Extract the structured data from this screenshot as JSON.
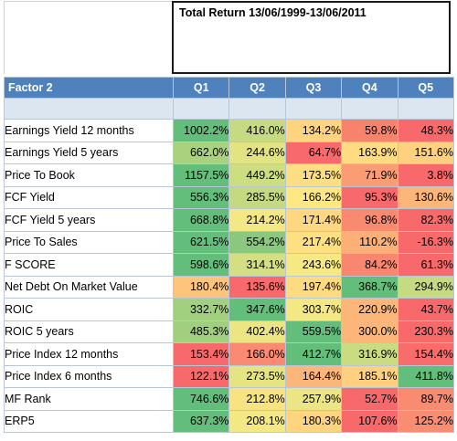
{
  "title": "Total Return 13/06/1999-13/06/2011",
  "header": {
    "factor_label": "Factor 2",
    "quintiles": [
      "Q1",
      "Q2",
      "Q3",
      "Q4",
      "Q5"
    ]
  },
  "rows": [
    {
      "name": "Earnings Yield 12 months",
      "values": [
        "1002.2%",
        "416.0%",
        "134.2%",
        "59.8%",
        "48.3%"
      ],
      "colors": [
        "#63be7b",
        "#c6db81",
        "#fed480",
        "#f8836c",
        "#f8696b"
      ]
    },
    {
      "name": "Earnings Yield 5 years",
      "values": [
        "662.0%",
        "244.6%",
        "64.7%",
        "163.9%",
        "151.6%"
      ],
      "colors": [
        "#a9d27f",
        "#e2e383",
        "#f8696b",
        "#ffdc82",
        "#fdd17f"
      ]
    },
    {
      "name": "Price To Book",
      "values": [
        "1157.5%",
        "449.2%",
        "173.5%",
        "71.9%",
        "3.8%"
      ],
      "colors": [
        "#63be7b",
        "#ccdd82",
        "#fede83",
        "#fa9d75",
        "#f8696b"
      ]
    },
    {
      "name": "FCF Yield",
      "values": [
        "556.3%",
        "285.5%",
        "166.2%",
        "95.3%",
        "130.6%"
      ],
      "colors": [
        "#63be7b",
        "#c4da81",
        "#fee883",
        "#f8696b",
        "#fcb679"
      ]
    },
    {
      "name": "FCF Yield 5 years",
      "values": [
        "668.8%",
        "214.2%",
        "171.4%",
        "96.8%",
        "82.3%"
      ],
      "colors": [
        "#63be7b",
        "#f3e884",
        "#fed880",
        "#f98a70",
        "#f8696b"
      ]
    },
    {
      "name": "Price To Sales",
      "values": [
        "621.5%",
        "554.2%",
        "217.4%",
        "110.2%",
        "-16.3%"
      ],
      "colors": [
        "#63be7b",
        "#8ac97d",
        "#fedf82",
        "#fcb078",
        "#f8696b"
      ]
    },
    {
      "name": "F SCORE",
      "values": [
        "598.6%",
        "314.1%",
        "243.6%",
        "84.2%",
        "61.3%"
      ],
      "colors": [
        "#63be7b",
        "#d3df82",
        "#f6e984",
        "#f9866f",
        "#f8696b"
      ]
    },
    {
      "name": "Net Debt On Market Value",
      "values": [
        "180.4%",
        "135.6%",
        "197.4%",
        "368.7%",
        "294.9%"
      ],
      "colors": [
        "#fdc47c",
        "#f8696b",
        "#feda81",
        "#63be7b",
        "#c6db81"
      ]
    },
    {
      "name": "ROIC",
      "values": [
        "332.7%",
        "347.6%",
        "303.7%",
        "220.9%",
        "43.7%"
      ],
      "colors": [
        "#a1d07e",
        "#63be7b",
        "#f4e884",
        "#fcb679",
        "#f8696b"
      ]
    },
    {
      "name": "ROIC 5 years",
      "values": [
        "485.3%",
        "402.4%",
        "559.5%",
        "300.0%",
        "230.3%"
      ],
      "colors": [
        "#a0cf7e",
        "#ebe583",
        "#63be7b",
        "#fcb679",
        "#f8696b"
      ]
    },
    {
      "name": "Price Index 12 months",
      "values": [
        "153.4%",
        "166.0%",
        "412.7%",
        "316.9%",
        "154.4%"
      ],
      "colors": [
        "#f8696b",
        "#fa8a71",
        "#63be7b",
        "#cadc81",
        "#f86c6b"
      ]
    },
    {
      "name": "Price Index 6 months",
      "values": [
        "122.1%",
        "273.5%",
        "164.4%",
        "185.1%",
        "411.8%"
      ],
      "colors": [
        "#f8696b",
        "#e5e483",
        "#fcb679",
        "#fed07f",
        "#63be7b"
      ]
    },
    {
      "name": "MF Rank",
      "values": [
        "746.6%",
        "212.8%",
        "257.9%",
        "52.7%",
        "89.7%"
      ],
      "colors": [
        "#63be7b",
        "#f8e383",
        "#ebe583",
        "#f8696b",
        "#f98b70"
      ]
    },
    {
      "name": "ERP5",
      "values": [
        "637.3%",
        "208.1%",
        "180.3%",
        "107.6%",
        "125.2%"
      ],
      "colors": [
        "#63be7b",
        "#f4e884",
        "#fed47f",
        "#f8696b",
        "#fa8c71"
      ]
    }
  ]
}
